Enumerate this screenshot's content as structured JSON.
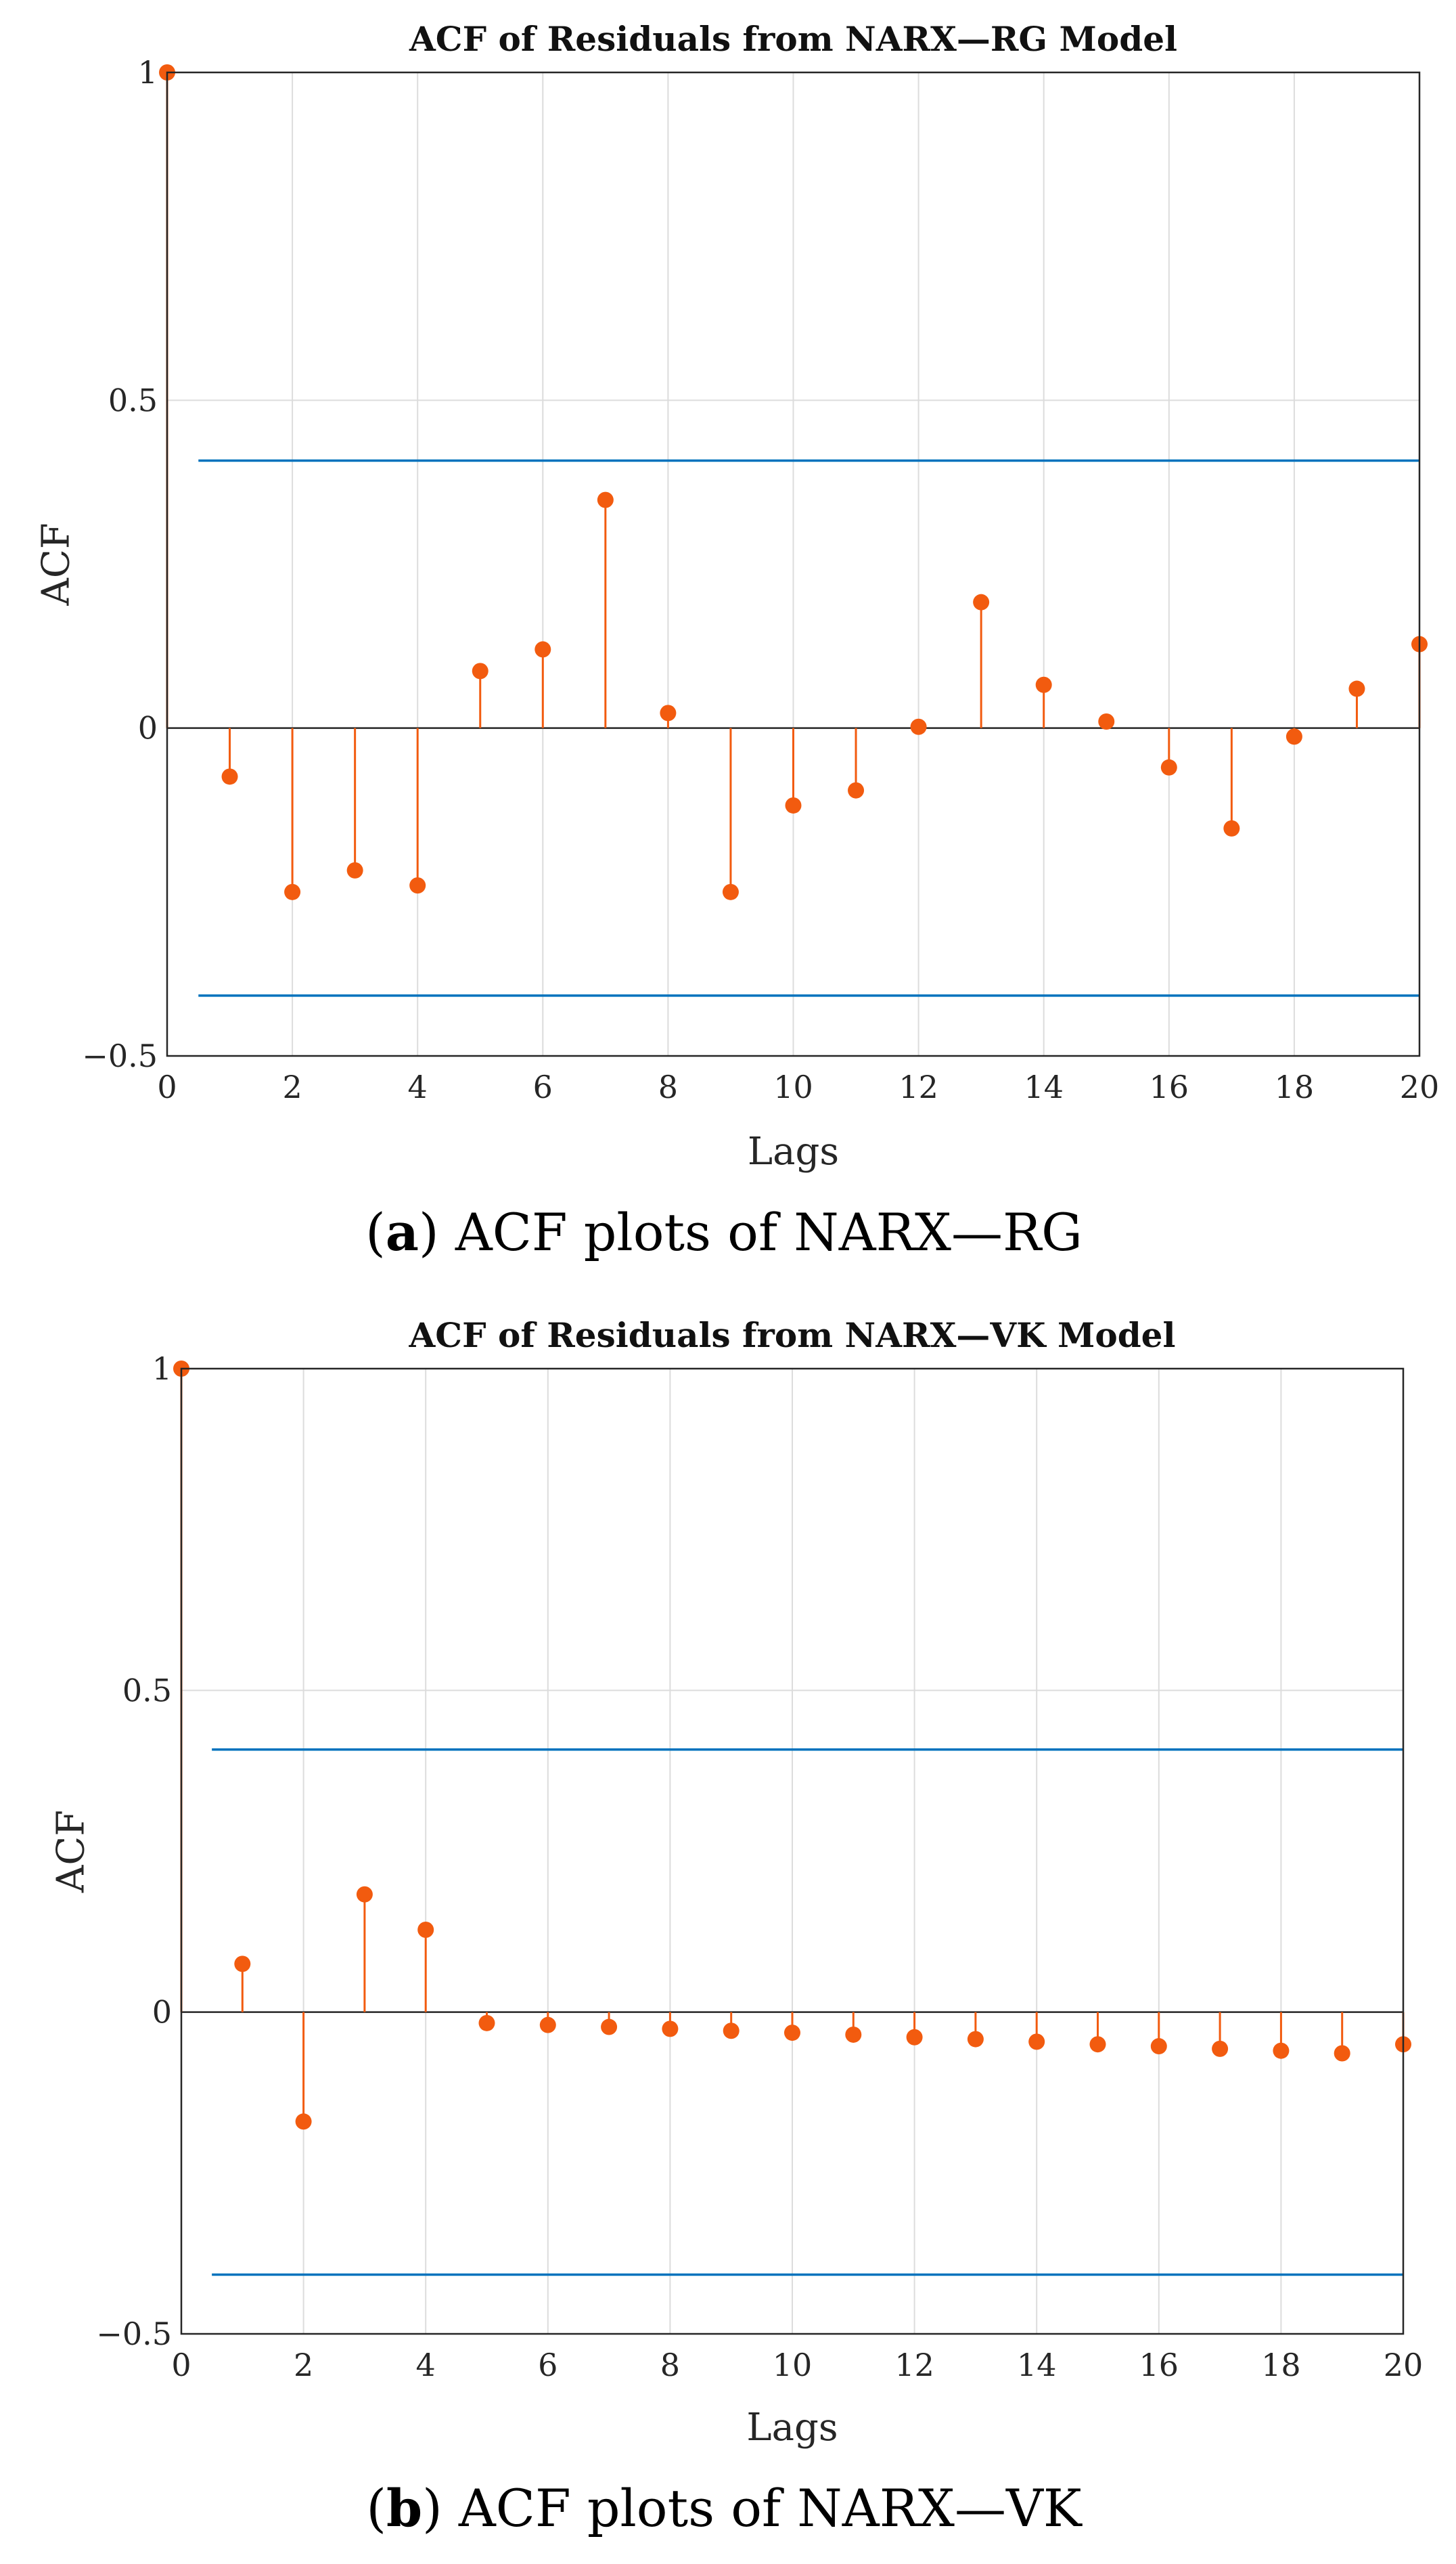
{
  "colors": {
    "stem": "#F25B0F",
    "bound": "#0072BD"
  },
  "chart_data": [
    {
      "type": "stem",
      "title": "ACF of Residuals from NARX—RG Model",
      "xlabel": "Lags",
      "ylabel": "ACF",
      "caption_bold": "a",
      "caption_text": " ACF plots of NARX—RG",
      "xlim": [
        0,
        20
      ],
      "ylim": [
        -0.5,
        1
      ],
      "xticks": [
        0,
        2,
        4,
        6,
        8,
        10,
        12,
        14,
        16,
        18,
        20
      ],
      "yticks": [
        -0.5,
        0,
        0.5,
        1
      ],
      "ytick_labels": [
        "−0.5",
        "0",
        "0.5",
        "1"
      ],
      "grid": true,
      "confidence_bounds": {
        "upper": 0.408,
        "lower": -0.408,
        "x_start": 0.5,
        "x_end": 20
      },
      "lags": [
        0,
        1,
        2,
        3,
        4,
        5,
        6,
        7,
        8,
        9,
        10,
        11,
        12,
        13,
        14,
        15,
        16,
        17,
        18,
        19,
        20
      ],
      "values": [
        1.0,
        -0.074,
        -0.25,
        -0.217,
        -0.24,
        0.087,
        0.12,
        0.348,
        0.023,
        -0.25,
        -0.118,
        -0.095,
        0.002,
        0.192,
        0.066,
        0.01,
        -0.06,
        -0.153,
        -0.013,
        0.06,
        0.128
      ]
    },
    {
      "type": "stem",
      "title": "ACF of Residuals from NARX—VK Model",
      "xlabel": "Lags",
      "ylabel": "ACF",
      "caption_bold": "b",
      "caption_text": " ACF plots of NARX—VK",
      "xlim": [
        0,
        20
      ],
      "ylim": [
        -0.5,
        1
      ],
      "xticks": [
        0,
        2,
        4,
        6,
        8,
        10,
        12,
        14,
        16,
        18,
        20
      ],
      "yticks": [
        -0.5,
        0,
        0.5,
        1
      ],
      "ytick_labels": [
        "−0.5",
        "0",
        "0.5",
        "1"
      ],
      "grid": true,
      "confidence_bounds": {
        "upper": 0.408,
        "lower": -0.408,
        "x_start": 0.5,
        "x_end": 20
      },
      "lags": [
        0,
        1,
        2,
        3,
        4,
        5,
        6,
        7,
        8,
        9,
        10,
        11,
        12,
        13,
        14,
        15,
        16,
        17,
        18,
        19,
        20
      ],
      "values": [
        1.0,
        0.075,
        -0.17,
        0.183,
        0.128,
        -0.017,
        -0.02,
        -0.023,
        -0.026,
        -0.029,
        -0.032,
        -0.035,
        -0.039,
        -0.042,
        -0.046,
        -0.05,
        -0.053,
        -0.057,
        -0.06,
        -0.064,
        -0.05
      ]
    }
  ]
}
